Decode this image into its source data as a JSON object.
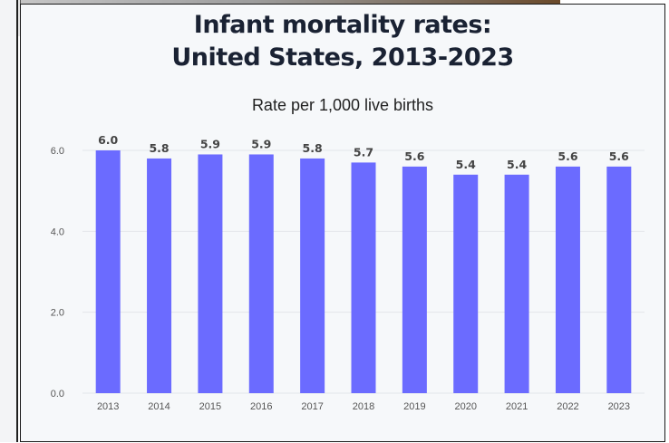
{
  "colors": {
    "bar": "#6b6bff",
    "grid": "#e3e6ea",
    "text": "#1a2233"
  },
  "chart_data": {
    "type": "bar",
    "title": [
      "Infant mortality rates:",
      "United States, 2013-2023"
    ],
    "subtitle": "Rate per 1,000 live births",
    "categories": [
      "2013",
      "2014",
      "2015",
      "2016",
      "2017",
      "2018",
      "2019",
      "2020",
      "2021",
      "2022",
      "2023"
    ],
    "values": [
      6.0,
      5.8,
      5.9,
      5.9,
      5.8,
      5.7,
      5.6,
      5.4,
      5.4,
      5.6,
      5.6
    ],
    "data_labels": [
      "6.0",
      "5.8",
      "5.9",
      "5.9",
      "5.8",
      "5.7",
      "5.6",
      "5.4",
      "5.4",
      "5.6",
      "5.6"
    ],
    "y_ticks": [
      0,
      2,
      4,
      6
    ],
    "y_tick_labels": [
      "0.0",
      "2.0",
      "4.0",
      "6.0"
    ],
    "ylim": [
      0,
      6
    ],
    "grid": true,
    "legend": "none"
  }
}
